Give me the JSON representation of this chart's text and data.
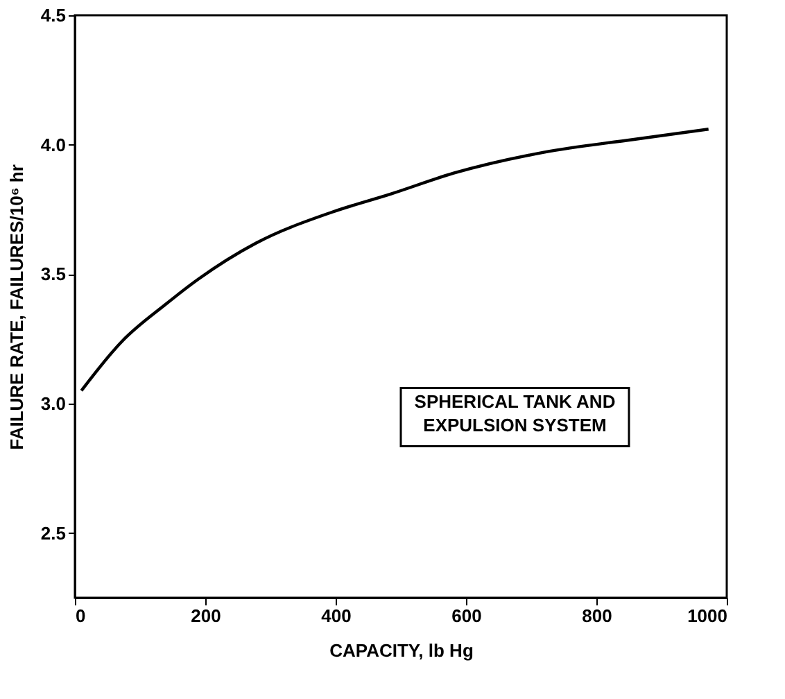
{
  "chart_data": {
    "type": "line",
    "xlabel": "CAPACITY, lb Hg",
    "ylabel": "FAILURE RATE, FAILURES/10⁶ hr",
    "annotations": [
      "SPHERICAL TANK AND\nEXPULSION SYSTEM"
    ],
    "x": [
      10,
      72,
      140,
      189,
      278,
      395,
      485,
      581,
      718,
      856,
      972
    ],
    "series": [
      {
        "color": "#000000",
        "values": [
          3.05,
          3.24,
          3.385,
          3.48,
          3.62,
          3.74,
          3.81,
          3.89,
          3.97,
          4.02,
          4.06
        ]
      }
    ],
    "xlim": [
      0,
      1000
    ],
    "xticks": [
      0,
      200,
      400,
      600,
      800,
      1000
    ],
    "ylim": [
      2.25,
      4.5
    ],
    "yticks": [
      2.5,
      {
        "value": 3,
        "label": "3.0"
      },
      3.5,
      {
        "value": 4,
        "label": "4.0"
      },
      4.5
    ],
    "grid": false,
    "marker": "none",
    "line_style": "solid"
  }
}
